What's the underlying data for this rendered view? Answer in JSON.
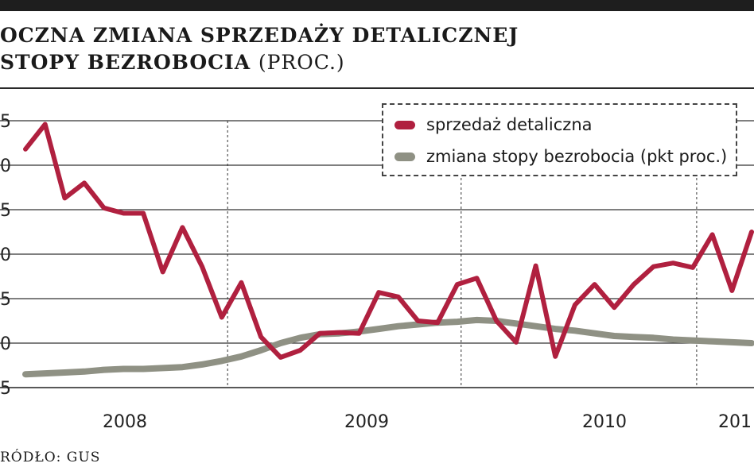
{
  "header": {
    "title_line1": "OCZNA ZMIANA SPRZEDAŻY DETALICZNEJ",
    "title_line2": "STOPY BEZROBOCIA",
    "title_unit": "(PROC.)"
  },
  "source": "RÓDŁO: GUS",
  "colors": {
    "retail": "#b0203f",
    "unemployment": "#8f9184",
    "grid": "#333333"
  },
  "chart_data": {
    "type": "line",
    "x_labels": [
      "2008",
      "2009",
      "2010",
      "201"
    ],
    "y_ticks": [
      "5",
      "0",
      "5",
      "0",
      "5",
      "0",
      "5"
    ],
    "ylim": [
      -5,
      25
    ],
    "grid": true,
    "legend_placement": "top-right",
    "series": [
      {
        "name": "sprzedaż detaliczna",
        "key": "retail",
        "values": [
          21.8,
          24.6,
          16.3,
          18.0,
          15.2,
          14.6,
          14.6,
          8.0,
          13.0,
          8.6,
          2.9,
          6.8,
          0.7,
          -1.6,
          -0.8,
          1.1,
          1.2,
          1.1,
          5.7,
          5.2,
          2.5,
          2.3,
          6.6,
          7.3,
          2.5,
          0.1,
          8.7,
          -1.5,
          4.3,
          6.6,
          4.0,
          6.6,
          8.6,
          9.0,
          8.5,
          12.2,
          5.9,
          12.5
        ]
      },
      {
        "name": "zmiana stopy bezrobocia (pkt proc.)",
        "key": "unemployment",
        "values": [
          -3.5,
          -3.4,
          -3.3,
          -3.2,
          -3.0,
          -2.9,
          -2.9,
          -2.8,
          -2.7,
          -2.4,
          -2.0,
          -1.5,
          -0.8,
          0.0,
          0.6,
          1.0,
          1.1,
          1.3,
          1.6,
          1.9,
          2.1,
          2.3,
          2.4,
          2.6,
          2.5,
          2.2,
          1.9,
          1.6,
          1.4,
          1.1,
          0.8,
          0.7,
          0.6,
          0.4,
          0.3,
          0.2,
          0.1,
          0.0
        ]
      }
    ]
  }
}
